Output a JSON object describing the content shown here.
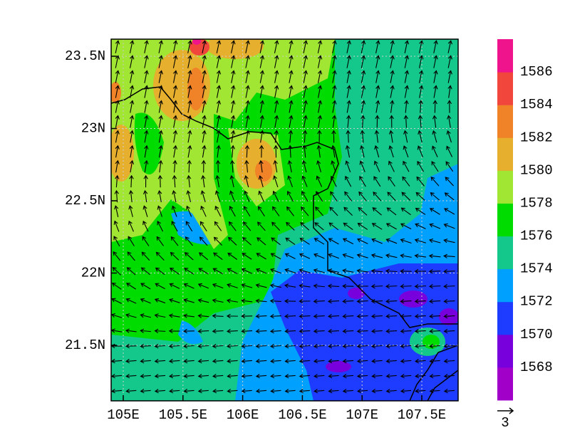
{
  "x_axis": {
    "labels": [
      "105E",
      "105.5E",
      "106E",
      "106.5E",
      "107E",
      "107.5E"
    ]
  },
  "y_axis": {
    "labels": [
      "23.5N",
      "23N",
      "22.5N",
      "22N",
      "21.5N"
    ]
  },
  "colorbar": {
    "levels": [
      1568,
      1570,
      1572,
      1574,
      1576,
      1578,
      1580,
      1582,
      1584,
      1586
    ],
    "colors": [
      "#a000c8",
      "#7800dc",
      "#1e3cff",
      "#00a0ff",
      "#14c88c",
      "#00dc00",
      "#a0e632",
      "#e6af2d",
      "#f08228",
      "#f0463c",
      "#f0148c"
    ]
  },
  "vector_reference": {
    "label": "3"
  }
}
